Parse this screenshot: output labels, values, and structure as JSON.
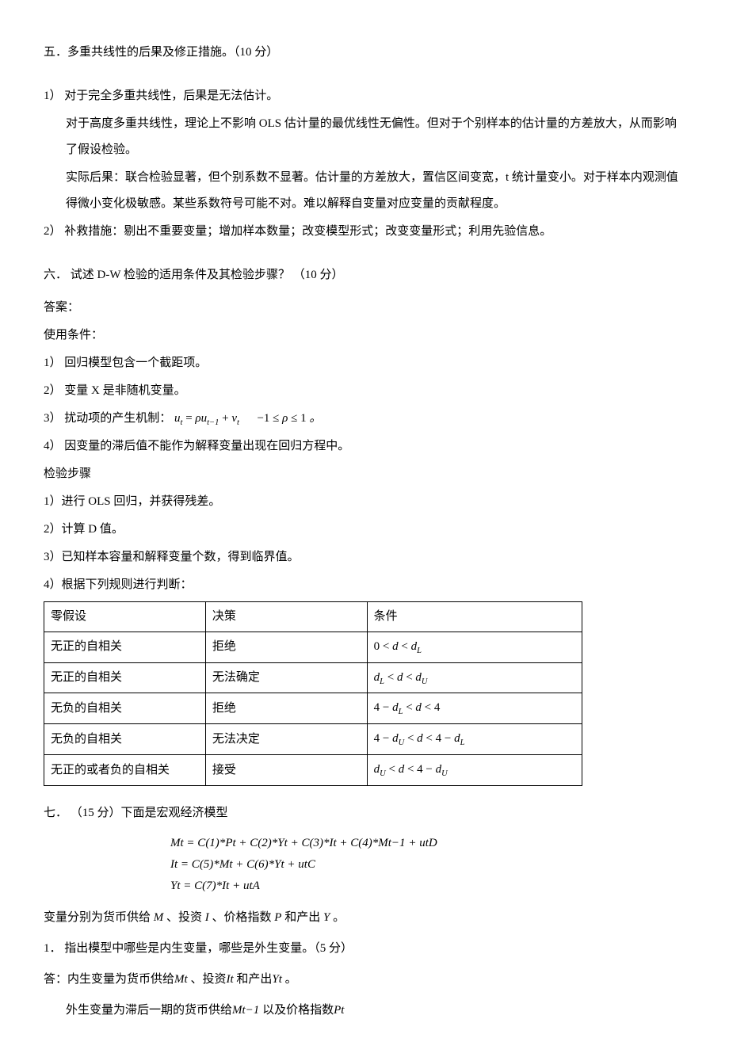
{
  "q5": {
    "title": "五．多重共线性的后果及修正措施。（10 分）",
    "item1_lead": "1）  对于完全多重共线性，后果是无法估计。",
    "item1_p2": "对于高度多重共线性，理论上不影响 OLS 估计量的最优线性无偏性。但对于个别样本的估计量的方差放大，从而影响了假设检验。",
    "item1_p3": "实际后果：联合检验显著，但个别系数不显著。估计量的方差放大，置信区间变宽，t 统计量变小。对于样本内观测值得微小变化极敏感。某些系数符号可能不对。难以解释自变量对应变量的贡献程度。",
    "item2": "2）  补救措施：剔出不重要变量；增加样本数量；改变模型形式；改变变量形式；利用先验信息。"
  },
  "q6": {
    "title": "六．  试述 D-W 检验的适用条件及其检验步骤？ （10 分）",
    "ans_label": "答案：",
    "cond_label": "使用条件：",
    "c1": "1） 回归模型包含一个截距项。",
    "c2": "2） 变量 X 是非随机变量。",
    "c3_prefix": "3） 扰动项的产生机制：",
    "c3_formula": "uₜ = ρuₜ₋₁ + vₜ       −1 ≤ ρ ≤ 1 。",
    "c4": "4） 因变量的滞后值不能作为解释变量出现在回归方程中。",
    "steps_label": "检验步骤",
    "s1": "1）进行 OLS 回归，并获得残差。",
    "s2": "2）计算 D 值。",
    "s3": "3）已知样本容量和解释变量个数，得到临界值。",
    "s4": "4）根据下列规则进行判断：",
    "table": {
      "headers": [
        "零假设",
        "决策",
        "条件"
      ],
      "rows": [
        {
          "h": "无正的自相关",
          "d": "拒绝",
          "c": "0 < d < d_L"
        },
        {
          "h": "无正的自相关",
          "d": "无法确定",
          "c": "d_L < d < d_U"
        },
        {
          "h": "无负的自相关",
          "d": "拒绝",
          "c": "4 − d_L < d < 4"
        },
        {
          "h": "无负的自相关",
          "d": "无法决定",
          "c": "4 − d_U < d < 4 − d_L"
        },
        {
          "h": "无正的或者负的自相关",
          "d": "接受",
          "c": "d_U < d < 4 − d_U"
        }
      ]
    }
  },
  "q7": {
    "title": "七．  （15 分）下面是宏观经济模型",
    "eq1": "Mₜ = C(1)*Pₜ + C(2)*Yₜ + C(3)*Iₜ + C(4)*Mₜ₋₁ + uₜᴰ",
    "eq2": "Iₜ = C(5)*Mₜ + C(6)*Yₜ + uₜᶜ",
    "eq3": "Yₜ = C(7)*Iₜ + uₜᴬ",
    "vars_line_pre": "变量分别为货币供给",
    "vars_line_post": " 、投资 I 、价格指数 P 和产出 Y 。",
    "M": "M",
    "sub1_title": "1．  指出模型中哪些是内生变量，哪些是外生变量。（5 分）",
    "ans1_pre": "答：内生变量为货币供给",
    "ans1_mid1": " 、投资",
    "ans1_mid2": "和产出",
    "ans1_end": "。",
    "Mt": "Mₜ",
    "It": "Iₜ",
    "Yt": "Yₜ",
    "ans2_pre": "外生变量为滞后一期的货币供给",
    "Mt1": "Mₜ₋₁",
    "ans2_mid": " 以及价格指数",
    "Pt": "Pₜ"
  }
}
